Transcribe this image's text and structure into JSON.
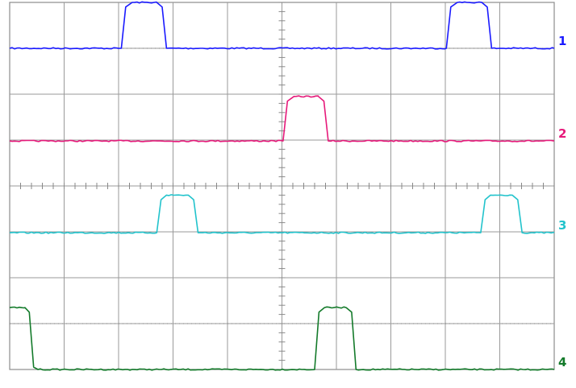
{
  "chart_data": {
    "type": "line",
    "title": "",
    "xlabel": "",
    "ylabel": "",
    "grid": true,
    "x_divisions": 10,
    "y_divisions": 8,
    "x_range": [
      0,
      10
    ],
    "y_range": [
      0,
      8
    ],
    "series": [
      {
        "name": "1",
        "color": "#1a1aff",
        "baseline": 7.0,
        "high": 8.0,
        "x": [
          0,
          2.05,
          2.13,
          2.25,
          2.7,
          2.8,
          2.88,
          8.02,
          8.1,
          8.22,
          8.67,
          8.77,
          8.85,
          10.0
        ],
        "y": [
          7.0,
          7.0,
          7.9,
          8.0,
          8.0,
          7.9,
          7.0,
          7.0,
          7.9,
          8.0,
          8.0,
          7.9,
          7.0,
          7.0
        ]
      },
      {
        "name": "2",
        "color": "#e6197a",
        "baseline": 4.98,
        "high": 5.95,
        "x": [
          0,
          5.02,
          5.1,
          5.22,
          5.67,
          5.77,
          5.85,
          10.0
        ],
        "y": [
          4.98,
          4.98,
          5.85,
          5.95,
          5.95,
          5.85,
          4.98,
          4.98
        ]
      },
      {
        "name": "3",
        "color": "#22c3cc",
        "baseline": 2.98,
        "high": 3.8,
        "x": [
          0,
          2.7,
          2.78,
          2.88,
          3.28,
          3.38,
          3.46,
          8.65,
          8.73,
          8.83,
          9.23,
          9.33,
          9.41,
          10.0
        ],
        "y": [
          2.98,
          2.98,
          3.7,
          3.8,
          3.8,
          3.7,
          2.98,
          2.98,
          3.7,
          3.8,
          3.8,
          3.7,
          2.98,
          2.98
        ]
      },
      {
        "name": "4",
        "color": "#137a2a",
        "baseline": 0.0,
        "high": 1.35,
        "x": [
          0,
          0.28,
          0.36,
          0.44,
          0.52,
          5.6,
          5.68,
          5.78,
          6.18,
          6.28,
          6.36,
          10.0
        ],
        "y": [
          1.35,
          1.35,
          1.25,
          0.05,
          0.0,
          0.0,
          1.25,
          1.35,
          1.35,
          1.25,
          0.0,
          0.0
        ]
      }
    ]
  }
}
